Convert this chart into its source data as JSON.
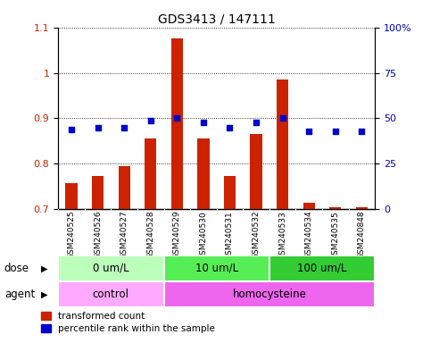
{
  "title": "GDS3413 / 147111",
  "samples": [
    "GSM240525",
    "GSM240526",
    "GSM240527",
    "GSM240528",
    "GSM240529",
    "GSM240530",
    "GSM240531",
    "GSM240532",
    "GSM240533",
    "GSM240534",
    "GSM240535",
    "GSM240848"
  ],
  "transformed_count": [
    0.758,
    0.773,
    0.795,
    0.855,
    1.075,
    0.855,
    0.773,
    0.865,
    0.985,
    0.715,
    0.705,
    0.705
  ],
  "percentile_rank": [
    44,
    45,
    45,
    49,
    50,
    48,
    45,
    48,
    50,
    43,
    43,
    43
  ],
  "ylim_left": [
    0.7,
    1.1
  ],
  "ylim_right": [
    0,
    100
  ],
  "yticks_left": [
    0.7,
    0.8,
    0.9,
    1.0,
    1.1
  ],
  "ytick_labels_left": [
    "0.7",
    "0.8",
    "0.9",
    "1",
    "1.1"
  ],
  "yticks_right": [
    0,
    25,
    50,
    75,
    100
  ],
  "ytick_labels_right": [
    "0",
    "25",
    "50",
    "75",
    "100%"
  ],
  "bar_color": "#cc2200",
  "dot_color": "#0000cc",
  "dose_groups": [
    {
      "label": "0 um/L",
      "start": 0,
      "end": 4,
      "color": "#bbffbb"
    },
    {
      "label": "10 um/L",
      "start": 4,
      "end": 8,
      "color": "#55ee55"
    },
    {
      "label": "100 um/L",
      "start": 8,
      "end": 12,
      "color": "#33cc33"
    }
  ],
  "agent_groups": [
    {
      "label": "control",
      "start": 0,
      "end": 4,
      "color": "#ffaaff"
    },
    {
      "label": "homocysteine",
      "start": 4,
      "end": 12,
      "color": "#ee66ee"
    }
  ],
  "dose_label": "dose",
  "agent_label": "agent",
  "legend_bar_label": "transformed count",
  "legend_dot_label": "percentile rank within the sample",
  "label_area_bg": "#cccccc",
  "fig_bg": "#ffffff"
}
